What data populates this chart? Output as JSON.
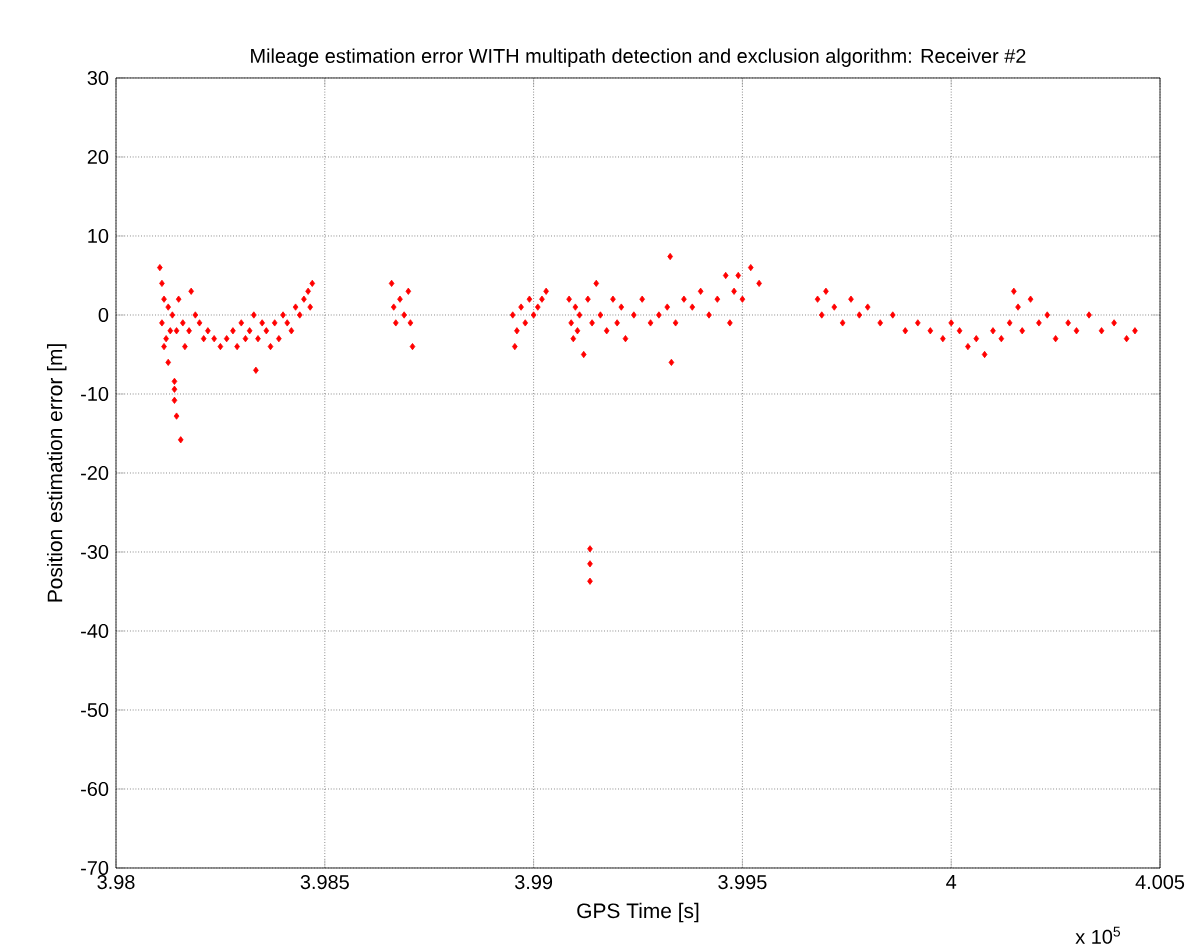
{
  "chart_data": {
    "type": "scatter",
    "title": "Mileage estimation error WITH multipath detection and exclusion algorithm: Receiver #2",
    "xlabel": "GPS Time [s]",
    "ylabel": "Position estimation error [m]",
    "annotations": [
      "x 10$^{5}$"
    ],
    "xlim": [
      3.98,
      4.005
    ],
    "ylim": [
      -70,
      30
    ],
    "xticks": [
      3.98,
      3.985,
      3.99,
      3.995,
      4,
      4.005
    ],
    "yticks": [
      -70,
      -60,
      -50,
      -40,
      -30,
      -20,
      -10,
      0,
      10,
      20,
      30
    ],
    "grid": true,
    "marker": "diamond",
    "series": [
      {
        "color": "#ff0000",
        "x": [
          3.98105,
          3.9811,
          3.9811,
          3.98115,
          3.98115,
          3.9812,
          3.98125,
          3.98125,
          3.9813,
          3.98135,
          3.9814,
          3.9814,
          3.9814,
          3.98145,
          3.98145,
          3.9815,
          3.98155,
          3.9816,
          3.98165,
          3.98175,
          3.9818,
          3.9819,
          3.982,
          3.9821,
          3.9822,
          3.98235,
          3.9825,
          3.98265,
          3.9828,
          3.9829,
          3.983,
          3.9831,
          3.9832,
          3.9833,
          3.98335,
          3.9834,
          3.9835,
          3.9836,
          3.9837,
          3.9838,
          3.9839,
          3.984,
          3.9841,
          3.9842,
          3.9843,
          3.9844,
          3.9845,
          3.9846,
          3.98465,
          3.9847,
          3.9866,
          3.98665,
          3.9867,
          3.9868,
          3.9869,
          3.987,
          3.98705,
          3.9871,
          3.9895,
          3.98955,
          3.9896,
          3.9897,
          3.9898,
          3.9899,
          3.99,
          3.9901,
          3.9902,
          3.9903,
          3.99085,
          3.9909,
          3.99095,
          3.991,
          3.99105,
          3.9911,
          3.9912,
          3.9913,
          3.99135,
          3.99135,
          3.99135,
          3.9914,
          3.9915,
          3.9916,
          3.99175,
          3.9919,
          3.992,
          3.9921,
          3.9922,
          3.9924,
          3.9926,
          3.9928,
          3.993,
          3.9932,
          3.99327,
          3.9933,
          3.9934,
          3.9936,
          3.9938,
          3.994,
          3.9942,
          3.9944,
          3.9946,
          3.9947,
          3.9948,
          3.9949,
          3.995,
          3.9952,
          3.9954,
          3.9968,
          3.9969,
          3.997,
          3.9972,
          3.9974,
          3.9976,
          3.9978,
          3.998,
          3.9983,
          3.9986,
          3.9989,
          3.9992,
          3.9995,
          3.9998,
          4,
          4.0002,
          4.0004,
          4.0006,
          4.0008,
          4.001,
          4.0012,
          4.0014,
          4.0015,
          4.0016,
          4.0017,
          4.0019,
          4.0021,
          4.0023,
          4.0025,
          4.0028,
          4.003,
          4.0033,
          4.0036,
          4.0039,
          4.0042,
          4.0044
        ],
        "values": [
          6,
          4,
          -1,
          2,
          -4,
          -3,
          1,
          -6,
          -2,
          0,
          -8.4,
          -9.4,
          -10.8,
          -12.8,
          -2,
          2,
          -15.8,
          -1,
          -4,
          -2,
          3,
          0,
          -1,
          -3,
          -2,
          -3,
          -4,
          -3,
          -2,
          -4,
          -1,
          -3,
          -2,
          0,
          -7,
          -3,
          -1,
          -2,
          -4,
          -1,
          -3,
          0,
          -1,
          -2,
          1,
          0,
          2,
          3,
          1,
          4,
          4,
          1,
          -1,
          2,
          0,
          3,
          -1,
          -4,
          0,
          -4,
          -2,
          1,
          -1,
          2,
          0,
          1,
          2,
          3,
          2,
          -1,
          -3,
          1,
          -2,
          0,
          -5,
          2,
          -29.6,
          -31.5,
          -33.7,
          -1,
          4,
          0,
          -2,
          2,
          -1,
          1,
          -3,
          0,
          2,
          -1,
          0,
          1,
          7.4,
          -6,
          -1,
          2,
          1,
          3,
          0,
          2,
          5,
          -1,
          3,
          5,
          2,
          6,
          4,
          2,
          0,
          3,
          1,
          -1,
          2,
          0,
          1,
          -1,
          0,
          -2,
          -1,
          -2,
          -3,
          -1,
          -2,
          -4,
          -3,
          -5,
          -2,
          -3,
          -1,
          3,
          1,
          -2,
          2,
          -1,
          0,
          -3,
          -1,
          -2,
          0,
          -2,
          -1,
          -3,
          -2
        ]
      }
    ]
  }
}
